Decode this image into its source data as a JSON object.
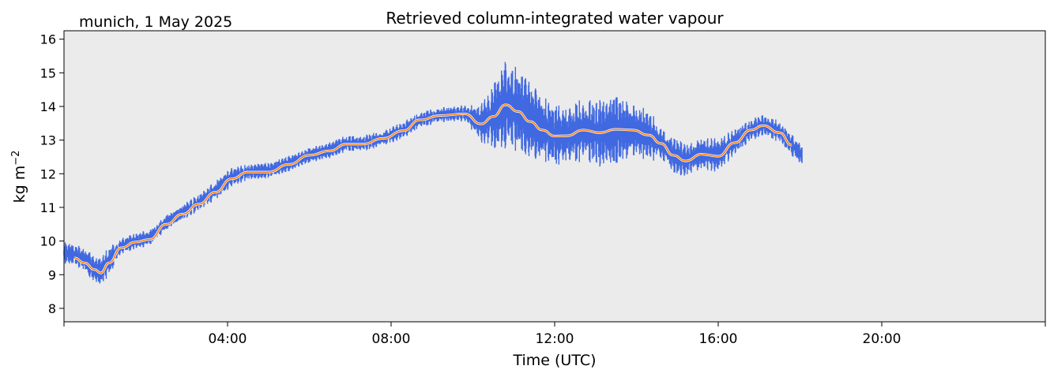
{
  "chart_data": {
    "type": "line",
    "title": "Retrieved column-integrated water vapour",
    "subtitle": "munich, 1 May 2025",
    "xlabel": "Time (UTC)",
    "ylabel_main": "kg m",
    "ylabel_exp": "−2",
    "xlim": [
      0,
      24
    ],
    "ylim": [
      7.6,
      16.25
    ],
    "x_ticks": [
      {
        "value": 0,
        "label": ""
      },
      {
        "value": 4,
        "label": "04:00"
      },
      {
        "value": 8,
        "label": "08:00"
      },
      {
        "value": 12,
        "label": "12:00"
      },
      {
        "value": 16,
        "label": "16:00"
      },
      {
        "value": 20,
        "label": "20:00"
      },
      {
        "value": 24,
        "label": ""
      }
    ],
    "y_ticks": [
      8,
      9,
      10,
      11,
      12,
      13,
      14,
      15,
      16
    ],
    "grid": false,
    "background": "#ebebeb",
    "series": [
      {
        "color": "#4169e1",
        "style": "dense-points",
        "x": [
          0,
          0.25,
          0.5,
          0.75,
          0.9,
          1.1,
          1.4,
          1.75,
          2.1,
          2.5,
          2.9,
          3.3,
          3.7,
          4.1,
          4.5,
          5.0,
          5.5,
          6.0,
          6.5,
          6.9,
          7.3,
          7.8,
          8.3,
          8.7,
          9.2,
          9.8,
          10.2,
          10.5,
          10.8,
          11.1,
          11.4,
          11.7,
          12.0,
          12.3,
          12.7,
          13.1,
          13.5,
          13.9,
          14.3,
          14.6,
          14.9,
          15.2,
          15.6,
          16.0,
          16.4,
          16.8,
          17.1,
          17.5,
          17.8,
          18.05
        ],
        "y": [
          9.65,
          9.6,
          9.45,
          9.15,
          9.1,
          9.4,
          9.85,
          10.0,
          10.1,
          10.55,
          10.85,
          11.15,
          11.5,
          11.9,
          12.05,
          12.1,
          12.3,
          12.55,
          12.7,
          12.9,
          12.9,
          13.05,
          13.3,
          13.6,
          13.75,
          13.8,
          13.5,
          13.7,
          14.05,
          13.9,
          13.6,
          13.35,
          13.15,
          13.15,
          13.3,
          13.2,
          13.3,
          13.3,
          13.15,
          12.9,
          12.55,
          12.4,
          12.6,
          12.55,
          12.95,
          13.3,
          13.45,
          13.25,
          12.85,
          12.55
        ],
        "noise": [
          0.2,
          0.2,
          0.22,
          0.25,
          0.3,
          0.25,
          0.15,
          0.15,
          0.15,
          0.15,
          0.15,
          0.15,
          0.18,
          0.18,
          0.15,
          0.15,
          0.15,
          0.15,
          0.15,
          0.15,
          0.15,
          0.15,
          0.15,
          0.15,
          0.15,
          0.15,
          0.35,
          0.6,
          0.8,
          0.8,
          0.7,
          0.6,
          0.6,
          0.5,
          0.6,
          0.6,
          0.7,
          0.55,
          0.45,
          0.35,
          0.35,
          0.3,
          0.3,
          0.3,
          0.25,
          0.2,
          0.2,
          0.2,
          0.2,
          0.2
        ]
      },
      {
        "color": "#ff7f0e",
        "style": "smooth-line",
        "x": [
          0.25,
          0.5,
          0.75,
          0.9,
          1.1,
          1.4,
          1.75,
          2.1,
          2.5,
          2.9,
          3.3,
          3.7,
          4.1,
          4.5,
          5.0,
          5.5,
          6.0,
          6.5,
          6.9,
          7.3,
          7.8,
          8.3,
          8.7,
          9.2,
          9.8,
          10.2,
          10.5,
          10.8,
          11.1,
          11.4,
          11.7,
          12.0,
          12.3,
          12.7,
          13.1,
          13.5,
          13.9,
          14.3,
          14.6,
          14.9,
          15.2,
          15.6,
          16.0,
          16.4,
          16.8,
          17.1,
          17.5,
          17.8
        ],
        "y": [
          9.5,
          9.35,
          9.15,
          9.05,
          9.35,
          9.8,
          9.97,
          10.05,
          10.5,
          10.8,
          11.1,
          11.45,
          11.85,
          12.05,
          12.05,
          12.28,
          12.55,
          12.68,
          12.88,
          12.88,
          13.05,
          13.28,
          13.6,
          13.73,
          13.78,
          13.48,
          13.7,
          14.05,
          13.85,
          13.55,
          13.3,
          13.12,
          13.13,
          13.3,
          13.22,
          13.32,
          13.3,
          13.15,
          12.9,
          12.55,
          12.38,
          12.58,
          12.52,
          12.92,
          13.3,
          13.43,
          13.22,
          12.85
        ]
      }
    ]
  }
}
